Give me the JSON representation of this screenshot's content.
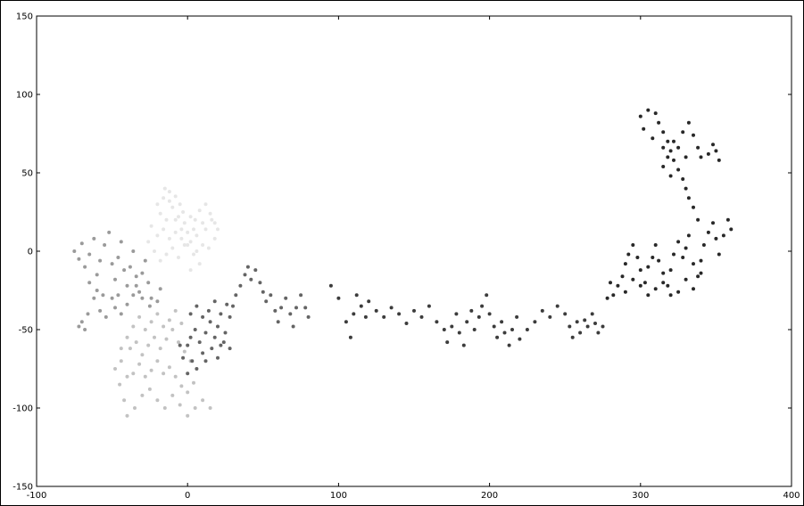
{
  "chart_data": {
    "type": "scatter",
    "title": "",
    "xlabel": "",
    "ylabel": "",
    "xlim": [
      -100,
      400
    ],
    "ylim": [
      -150,
      150
    ],
    "xticks": [
      -100,
      0,
      100,
      200,
      300,
      400
    ],
    "yticks": [
      -150,
      -100,
      -50,
      0,
      50,
      100,
      150
    ],
    "grid": false,
    "legend": "none",
    "series": [
      {
        "color": "#e6e6e6",
        "points": [
          [
            -15,
            40
          ],
          [
            -12,
            38
          ],
          [
            -8,
            35
          ],
          [
            -5,
            30
          ],
          [
            -10,
            28
          ],
          [
            -3,
            25
          ],
          [
            2,
            22
          ],
          [
            5,
            20
          ],
          [
            8,
            26
          ],
          [
            12,
            30
          ],
          [
            15,
            24
          ],
          [
            18,
            18
          ],
          [
            12,
            14
          ],
          [
            6,
            10
          ],
          [
            0,
            12
          ],
          [
            -4,
            8
          ],
          [
            -8,
            12
          ],
          [
            -12,
            8
          ],
          [
            -16,
            14
          ],
          [
            -20,
            10
          ],
          [
            -24,
            16
          ],
          [
            -26,
            6
          ],
          [
            -22,
            0
          ],
          [
            -18,
            -6
          ],
          [
            -14,
            -2
          ],
          [
            -10,
            2
          ],
          [
            -6,
            -4
          ],
          [
            -2,
            4
          ],
          [
            2,
            6
          ],
          [
            6,
            0
          ],
          [
            10,
            4
          ],
          [
            14,
            2
          ],
          [
            18,
            8
          ],
          [
            20,
            14
          ],
          [
            16,
            20
          ],
          [
            10,
            18
          ],
          [
            4,
            14
          ],
          [
            -2,
            18
          ],
          [
            -6,
            22
          ],
          [
            -14,
            20
          ],
          [
            -18,
            24
          ],
          [
            -20,
            30
          ],
          [
            -16,
            34
          ],
          [
            -12,
            32
          ],
          [
            -8,
            20
          ],
          [
            -4,
            14
          ],
          [
            0,
            4
          ],
          [
            4,
            -2
          ],
          [
            8,
            -8
          ],
          [
            2,
            -12
          ]
        ]
      },
      {
        "color": "#c2c2c2",
        "points": [
          [
            -45,
            -85
          ],
          [
            -42,
            -95
          ],
          [
            -40,
            -105
          ],
          [
            -35,
            -100
          ],
          [
            -30,
            -92
          ],
          [
            -25,
            -88
          ],
          [
            -20,
            -95
          ],
          [
            -15,
            -100
          ],
          [
            -10,
            -92
          ],
          [
            -5,
            -98
          ],
          [
            0,
            -105
          ],
          [
            5,
            -100
          ],
          [
            10,
            -95
          ],
          [
            15,
            -100
          ],
          [
            -48,
            -75
          ],
          [
            -44,
            -70
          ],
          [
            -40,
            -80
          ],
          [
            -36,
            -78
          ],
          [
            -32,
            -72
          ],
          [
            -28,
            -80
          ],
          [
            -24,
            -76
          ],
          [
            -20,
            -70
          ],
          [
            -16,
            -78
          ],
          [
            -12,
            -74
          ],
          [
            -8,
            -80
          ],
          [
            -4,
            -86
          ],
          [
            0,
            -90
          ],
          [
            4,
            -84
          ],
          [
            -38,
            -62
          ],
          [
            -34,
            -58
          ],
          [
            -30,
            -66
          ],
          [
            -26,
            -60
          ],
          [
            -22,
            -55
          ],
          [
            -18,
            -62
          ],
          [
            -14,
            -56
          ],
          [
            -10,
            -50
          ],
          [
            -6,
            -58
          ],
          [
            -2,
            -64
          ],
          [
            2,
            -70
          ],
          [
            -24,
            -45
          ],
          [
            -20,
            -40
          ],
          [
            -16,
            -48
          ],
          [
            -12,
            -44
          ],
          [
            -8,
            -38
          ],
          [
            -4,
            -46
          ],
          [
            -28,
            -50
          ],
          [
            -32,
            -42
          ],
          [
            -36,
            -48
          ],
          [
            -40,
            -55
          ],
          [
            -44,
            -62
          ]
        ]
      },
      {
        "color": "#9a9a9a",
        "points": [
          [
            -75,
            0
          ],
          [
            -72,
            -5
          ],
          [
            -70,
            5
          ],
          [
            -68,
            -10
          ],
          [
            -65,
            -2
          ],
          [
            -62,
            8
          ],
          [
            -60,
            -15
          ],
          [
            -58,
            -6
          ],
          [
            -55,
            4
          ],
          [
            -52,
            12
          ],
          [
            -50,
            -8
          ],
          [
            -48,
            -18
          ],
          [
            -46,
            -4
          ],
          [
            -44,
            6
          ],
          [
            -42,
            -12
          ],
          [
            -40,
            -22
          ],
          [
            -38,
            -10
          ],
          [
            -36,
            0
          ],
          [
            -34,
            -16
          ],
          [
            -32,
            -26
          ],
          [
            -30,
            -14
          ],
          [
            -28,
            -6
          ],
          [
            -26,
            -20
          ],
          [
            -24,
            -30
          ],
          [
            -65,
            -20
          ],
          [
            -62,
            -30
          ],
          [
            -60,
            -25
          ],
          [
            -58,
            -38
          ],
          [
            -56,
            -28
          ],
          [
            -54,
            -42
          ],
          [
            -70,
            -45
          ],
          [
            -68,
            -50
          ],
          [
            -66,
            -40
          ],
          [
            -72,
            -48
          ],
          [
            -50,
            -30
          ],
          [
            -48,
            -36
          ],
          [
            -46,
            -28
          ],
          [
            -44,
            -40
          ],
          [
            -40,
            -34
          ],
          [
            -36,
            -28
          ],
          [
            -34,
            -22
          ],
          [
            -30,
            -30
          ],
          [
            -25,
            -35
          ],
          [
            -20,
            -32
          ],
          [
            -18,
            -24
          ]
        ]
      },
      {
        "color": "#646464",
        "points": [
          [
            0,
            -60
          ],
          [
            2,
            -55
          ],
          [
            5,
            -50
          ],
          [
            8,
            -58
          ],
          [
            10,
            -65
          ],
          [
            12,
            -52
          ],
          [
            15,
            -45
          ],
          [
            18,
            -55
          ],
          [
            20,
            -48
          ],
          [
            22,
            -60
          ],
          [
            25,
            -52
          ],
          [
            28,
            -42
          ],
          [
            30,
            -35
          ],
          [
            32,
            -28
          ],
          [
            35,
            -22
          ],
          [
            38,
            -15
          ],
          [
            40,
            -10
          ],
          [
            42,
            -18
          ],
          [
            45,
            -12
          ],
          [
            48,
            -20
          ],
          [
            50,
            -26
          ],
          [
            52,
            -32
          ],
          [
            55,
            -28
          ],
          [
            58,
            -38
          ],
          [
            60,
            -45
          ],
          [
            62,
            -36
          ],
          [
            65,
            -30
          ],
          [
            68,
            -40
          ],
          [
            70,
            -48
          ],
          [
            72,
            -36
          ],
          [
            75,
            -28
          ],
          [
            78,
            -36
          ],
          [
            80,
            -42
          ],
          [
            3,
            -70
          ],
          [
            6,
            -75
          ],
          [
            0,
            -78
          ],
          [
            -3,
            -68
          ],
          [
            -5,
            -60
          ],
          [
            2,
            -40
          ],
          [
            6,
            -35
          ],
          [
            10,
            -42
          ],
          [
            14,
            -38
          ],
          [
            18,
            -32
          ],
          [
            22,
            -40
          ],
          [
            26,
            -34
          ],
          [
            12,
            -70
          ],
          [
            16,
            -62
          ],
          [
            20,
            -68
          ],
          [
            24,
            -58
          ],
          [
            28,
            -62
          ]
        ]
      },
      {
        "color": "#3c3c3c",
        "points": [
          [
            95,
            -22
          ],
          [
            100,
            -30
          ],
          [
            105,
            -45
          ],
          [
            108,
            -55
          ],
          [
            110,
            -40
          ],
          [
            112,
            -28
          ],
          [
            115,
            -35
          ],
          [
            118,
            -42
          ],
          [
            120,
            -32
          ],
          [
            125,
            -38
          ],
          [
            130,
            -42
          ],
          [
            135,
            -36
          ],
          [
            140,
            -40
          ],
          [
            145,
            -46
          ],
          [
            150,
            -38
          ],
          [
            155,
            -42
          ],
          [
            160,
            -35
          ],
          [
            165,
            -45
          ],
          [
            170,
            -50
          ],
          [
            172,
            -58
          ],
          [
            175,
            -48
          ],
          [
            178,
            -40
          ],
          [
            180,
            -52
          ],
          [
            183,
            -60
          ],
          [
            185,
            -45
          ],
          [
            188,
            -38
          ],
          [
            190,
            -50
          ],
          [
            193,
            -42
          ],
          [
            195,
            -35
          ],
          [
            198,
            -28
          ],
          [
            200,
            -40
          ],
          [
            203,
            -48
          ],
          [
            205,
            -55
          ],
          [
            208,
            -45
          ],
          [
            210,
            -52
          ],
          [
            213,
            -60
          ],
          [
            215,
            -50
          ],
          [
            218,
            -42
          ],
          [
            220,
            -56
          ],
          [
            225,
            -50
          ],
          [
            230,
            -45
          ],
          [
            235,
            -38
          ],
          [
            240,
            -42
          ],
          [
            245,
            -35
          ],
          [
            250,
            -40
          ],
          [
            253,
            -48
          ],
          [
            255,
            -55
          ],
          [
            258,
            -45
          ],
          [
            260,
            -52
          ],
          [
            263,
            -44
          ],
          [
            265,
            -48
          ],
          [
            268,
            -40
          ],
          [
            270,
            -46
          ],
          [
            272,
            -52
          ],
          [
            275,
            -48
          ]
        ]
      },
      {
        "color": "#282828",
        "points": [
          [
            278,
            -30
          ],
          [
            280,
            -20
          ],
          [
            282,
            -28
          ],
          [
            285,
            -22
          ],
          [
            288,
            -16
          ],
          [
            290,
            -8
          ],
          [
            292,
            -2
          ],
          [
            295,
            4
          ],
          [
            298,
            -4
          ],
          [
            300,
            -12
          ],
          [
            303,
            -20
          ],
          [
            305,
            -10
          ],
          [
            308,
            -4
          ],
          [
            310,
            4
          ],
          [
            312,
            -6
          ],
          [
            315,
            -14
          ],
          [
            318,
            -22
          ],
          [
            320,
            -12
          ],
          [
            322,
            -2
          ],
          [
            325,
            6
          ],
          [
            328,
            -4
          ],
          [
            330,
            2
          ],
          [
            332,
            10
          ],
          [
            335,
            -8
          ],
          [
            338,
            -16
          ],
          [
            340,
            -6
          ],
          [
            342,
            4
          ],
          [
            345,
            12
          ],
          [
            348,
            18
          ],
          [
            350,
            8
          ],
          [
            352,
            -2
          ],
          [
            355,
            10
          ],
          [
            358,
            20
          ],
          [
            360,
            14
          ],
          [
            325,
            -26
          ],
          [
            330,
            -18
          ],
          [
            335,
            -24
          ],
          [
            340,
            -14
          ],
          [
            320,
            -28
          ],
          [
            315,
            -20
          ],
          [
            310,
            -24
          ],
          [
            305,
            -28
          ],
          [
            300,
            -22
          ],
          [
            295,
            -18
          ],
          [
            290,
            -26
          ],
          [
            338,
            20
          ],
          [
            335,
            28
          ],
          [
            332,
            34
          ],
          [
            330,
            40
          ],
          [
            328,
            46
          ],
          [
            325,
            52
          ],
          [
            322,
            58
          ],
          [
            320,
            64
          ],
          [
            318,
            70
          ],
          [
            315,
            76
          ],
          [
            312,
            82
          ],
          [
            310,
            88
          ],
          [
            305,
            90
          ],
          [
            300,
            86
          ],
          [
            302,
            78
          ],
          [
            308,
            72
          ],
          [
            315,
            66
          ],
          [
            322,
            70
          ],
          [
            328,
            76
          ],
          [
            332,
            82
          ],
          [
            335,
            74
          ],
          [
            338,
            66
          ],
          [
            340,
            60
          ],
          [
            345,
            62
          ],
          [
            348,
            68
          ],
          [
            350,
            64
          ],
          [
            352,
            58
          ],
          [
            330,
            60
          ],
          [
            325,
            66
          ],
          [
            318,
            60
          ],
          [
            315,
            54
          ],
          [
            320,
            48
          ]
        ]
      }
    ]
  }
}
